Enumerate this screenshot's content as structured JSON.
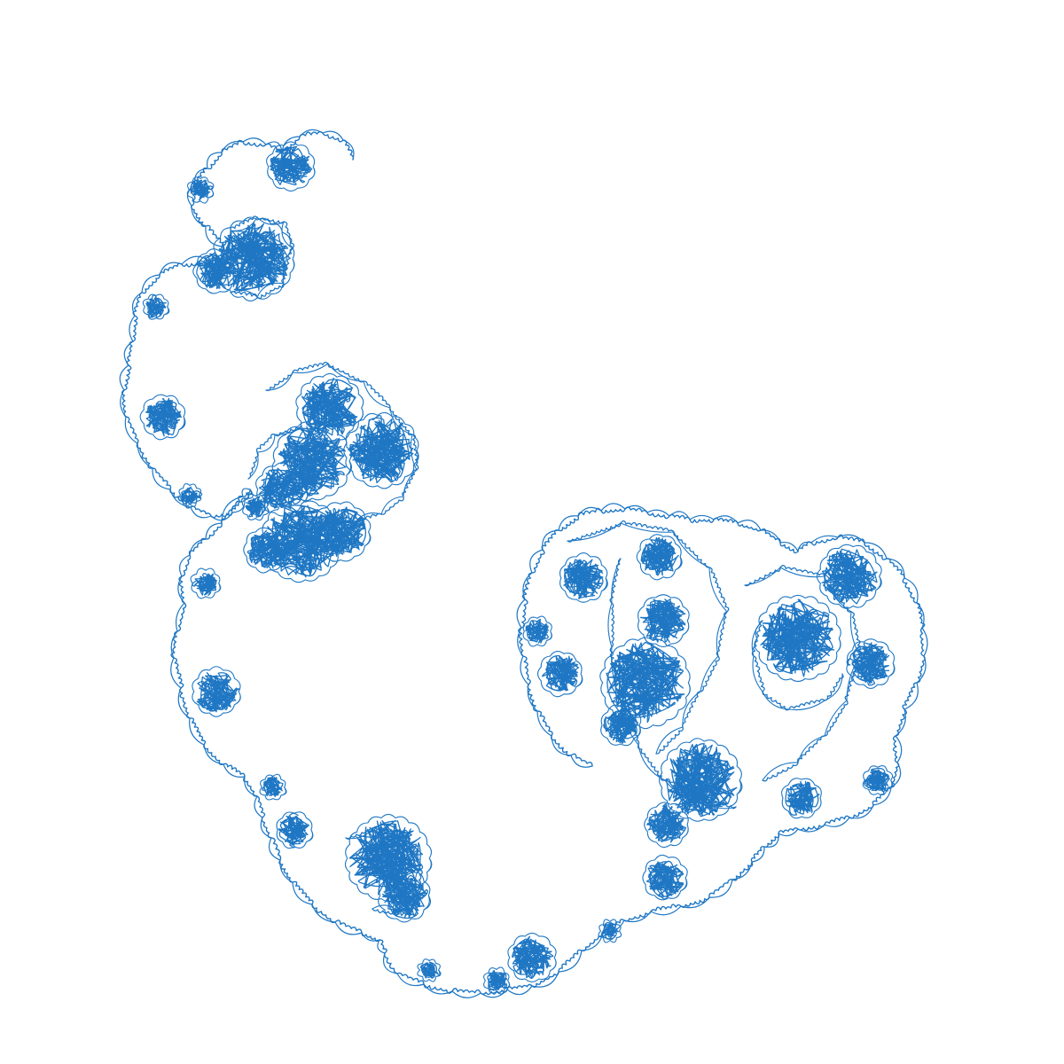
{
  "figure": {
    "kind": "fractal curve",
    "stroke_color": "#1f77c4",
    "background_color": "#ffffff"
  }
}
